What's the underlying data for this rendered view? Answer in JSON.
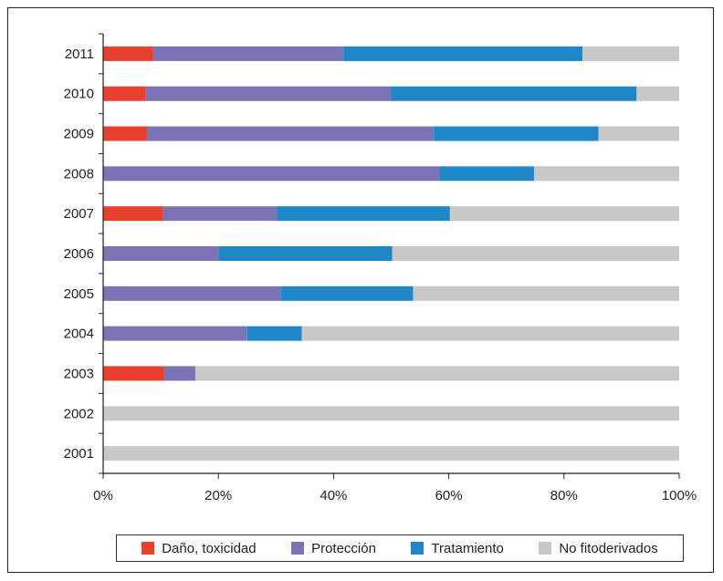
{
  "chart_data": {
    "type": "bar",
    "orientation": "horizontal",
    "stacked": true,
    "percent_stacked": true,
    "categories": [
      "2011",
      "2010",
      "2009",
      "2008",
      "2007",
      "2006",
      "2005",
      "2004",
      "2003",
      "2002",
      "2001"
    ],
    "series": [
      {
        "name": "Daño, toxicidad",
        "color": "#e8402f",
        "values": [
          8.7,
          7.4,
          7.6,
          0,
          10.4,
          0,
          0,
          0,
          10.6,
          0,
          0
        ]
      },
      {
        "name": "Protección",
        "color": "#7b73b3",
        "values": [
          33.0,
          42.6,
          49.8,
          58.4,
          19.8,
          20.0,
          30.8,
          25.0,
          5.4,
          0,
          0
        ]
      },
      {
        "name": "Tratamiento",
        "color": "#1f87c8",
        "values": [
          41.5,
          42.6,
          28.6,
          16.4,
          30.0,
          30.2,
          23.0,
          9.5,
          0,
          0,
          0
        ]
      },
      {
        "name": "No fitoderivados",
        "color": "#c8c8c8",
        "values": [
          16.8,
          7.4,
          14.0,
          25.2,
          39.8,
          49.8,
          46.2,
          65.5,
          84.0,
          100,
          100
        ]
      }
    ],
    "xlim": [
      0,
      100
    ],
    "x_ticks": [
      "0%",
      "20%",
      "40%",
      "60%",
      "80%",
      "100%"
    ],
    "title": "",
    "xlabel": "",
    "ylabel": "",
    "legend_position": "bottom",
    "grid": false
  }
}
